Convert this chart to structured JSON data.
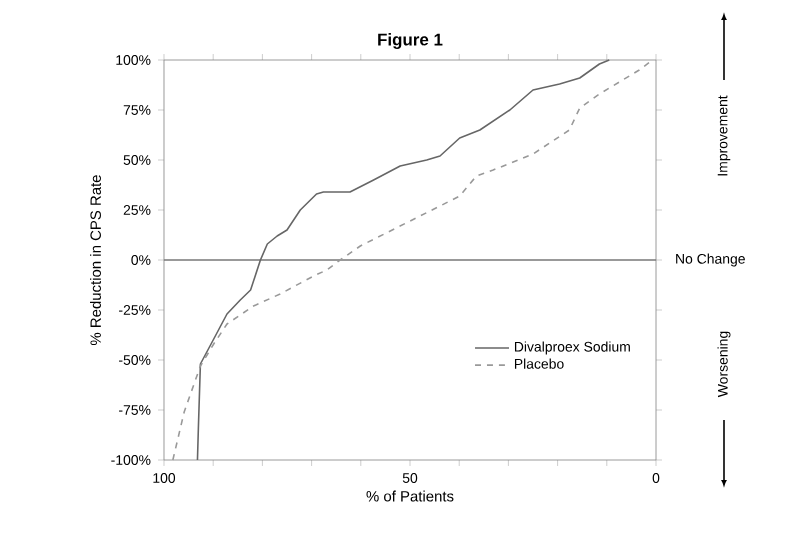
{
  "chart_data": {
    "type": "line",
    "title": "Figure 1",
    "xlabel": "% of Patients",
    "ylabel": "% Reduction in CPS Rate",
    "xlim": [
      100,
      0
    ],
    "ylim": [
      -100,
      100
    ],
    "xticks": [
      100,
      {
        "value": 90,
        "label": null
      },
      {
        "value": 80,
        "label": null
      },
      {
        "value": 70,
        "label": null
      },
      {
        "value": 60,
        "label": null
      },
      50,
      {
        "value": 40,
        "label": null
      },
      {
        "value": 30,
        "label": null
      },
      {
        "value": 20,
        "label": null
      },
      {
        "value": 10,
        "label": null
      },
      0
    ],
    "yticks": [
      {
        "value": 100,
        "label": "100%"
      },
      {
        "value": 75,
        "label": "75%"
      },
      {
        "value": 50,
        "label": "50%"
      },
      {
        "value": 25,
        "label": "25%"
      },
      {
        "value": 0,
        "label": "0%"
      },
      {
        "value": -25,
        "label": "-25%"
      },
      {
        "value": -50,
        "label": "-50%"
      },
      {
        "value": -75,
        "label": "-75%"
      },
      {
        "value": -100,
        "label": "-100%"
      }
    ],
    "legend": "bottom right",
    "grid": false,
    "ref_lines": [
      {
        "axis": "y",
        "value": 0,
        "label": "No Change",
        "color": "#777777"
      }
    ],
    "annotations": [
      "Improvement",
      "Worsening"
    ],
    "series": [
      {
        "name": "Divalproex Sodium",
        "color": "#666666",
        "line_style": "solid",
        "x": [
          93.2,
          93,
          92.6,
          90,
          87.2,
          84.5,
          82.4,
          80.4,
          79,
          77,
          75,
          72.3,
          69,
          67.6,
          62.2,
          57.4,
          52,
          46.6,
          43.9,
          39.9,
          35.8,
          29.7,
          25,
          19.6,
          15.5,
          11.5,
          9.5
        ],
        "values": [
          -100,
          -83,
          -52,
          -40,
          -27,
          -20,
          -15,
          0,
          8,
          12,
          15,
          25,
          33,
          34,
          34,
          40,
          47,
          50,
          52,
          61,
          65,
          75,
          85,
          88,
          91,
          98,
          100
        ]
      },
      {
        "name": "Placebo",
        "color": "#999999",
        "line_style": "dashed",
        "x": [
          98.2,
          95.9,
          92.6,
          89.9,
          87.2,
          81.8,
          76.4,
          69.6,
          66.9,
          64.2,
          60.1,
          52,
          43.9,
          39.9,
          36.5,
          33.1,
          25,
          17.6,
          15.5,
          11.5,
          3.4,
          0.7
        ],
        "values": [
          -100,
          -76,
          -53,
          -42,
          -32,
          -23,
          -17,
          -8,
          -5,
          0,
          7,
          17,
          27,
          32,
          42,
          45,
          53,
          65,
          76,
          83,
          95,
          100
        ]
      }
    ]
  }
}
